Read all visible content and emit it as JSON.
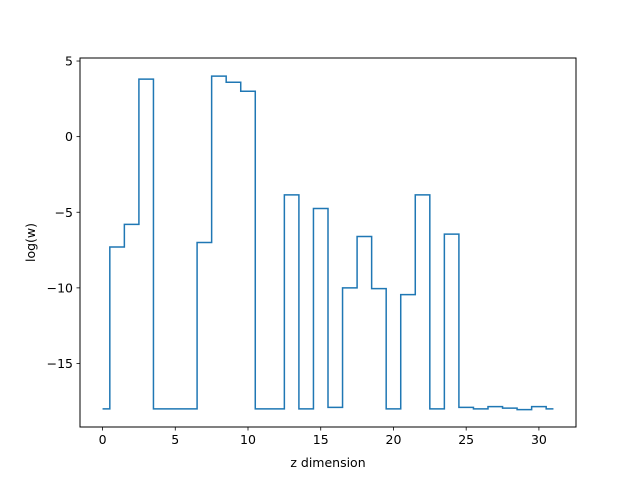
{
  "chart_data": {
    "type": "line",
    "step": "mid",
    "xlabel": "z dimension",
    "ylabel": "log(w)",
    "xlim": [
      -1.55,
      32.55
    ],
    "ylim": [
      -19.2,
      5.2
    ],
    "xticks": [
      0,
      5,
      10,
      15,
      20,
      25,
      30
    ],
    "yticks": [
      5,
      0,
      -5,
      -10,
      -15
    ],
    "ytick_labels": [
      "5",
      "0",
      "−5",
      "−10",
      "−15"
    ],
    "grid": false,
    "series": [
      {
        "color": "#1f77b4",
        "x": [
          0,
          1,
          2,
          3,
          4,
          5,
          6,
          7,
          8,
          9,
          10,
          11,
          12,
          13,
          14,
          15,
          16,
          17,
          18,
          19,
          20,
          21,
          22,
          23,
          24,
          25,
          26,
          27,
          28,
          29,
          30,
          31
        ],
        "y": [
          -18.0,
          -7.3,
          -5.8,
          3.8,
          -18.0,
          -18.0,
          -18.0,
          -7.0,
          4.0,
          3.6,
          3.0,
          -18.0,
          -18.0,
          -3.85,
          -18.0,
          -4.75,
          -17.9,
          -10.0,
          -6.6,
          -10.05,
          -18.0,
          -10.45,
          -3.85,
          -18.0,
          -6.45,
          -17.9,
          -18.0,
          -17.85,
          -17.95,
          -18.05,
          -17.85,
          -18.0
        ]
      }
    ]
  }
}
